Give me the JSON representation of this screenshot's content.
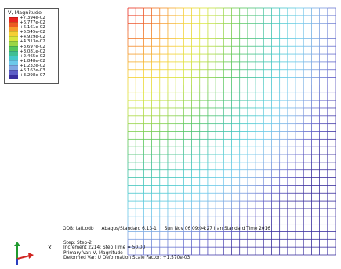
{
  "legend": {
    "title": "V, Magnitude",
    "entries": [
      {
        "label": "+7.394e-02",
        "color": "#e8231f"
      },
      {
        "label": "+6.777e-02",
        "color": "#ec5a22"
      },
      {
        "label": "+6.161e-02",
        "color": "#f59a2a"
      },
      {
        "label": "+5.545e-02",
        "color": "#f5cf32"
      },
      {
        "label": "+4.929e-02",
        "color": "#d9e43a"
      },
      {
        "label": "+4.313e-02",
        "color": "#9bd544"
      },
      {
        "label": "+3.697e-02",
        "color": "#55c55a"
      },
      {
        "label": "+3.081e-02",
        "color": "#3fbf93"
      },
      {
        "label": "+2.465e-02",
        "color": "#44c7c9"
      },
      {
        "label": "+1.848e-02",
        "color": "#6cc9ea"
      },
      {
        "label": "+1.232e-02",
        "color": "#7fa6e2"
      },
      {
        "label": "+6.162e-03",
        "color": "#5e5fc7"
      },
      {
        "label": "+3.298e-07",
        "color": "#3a2f9e"
      }
    ]
  },
  "odb": {
    "file": "ODB: taft.odb",
    "solver": "Abaqus/Standard 6.13-1",
    "datetime": "Sun Nov 06 09:04:27 Iran Standard Time 2016"
  },
  "step": {
    "step_line": "Step: Step-2",
    "increment_line": "Increment   2214: Step Time =    50.00",
    "primary_var_line": "Primary Var: V, Magnitude",
    "deformed_var_line": "Deformed Var: U   Deformation Scale Factor: +1.570e-03"
  },
  "triad": {
    "x_label": "X"
  }
}
